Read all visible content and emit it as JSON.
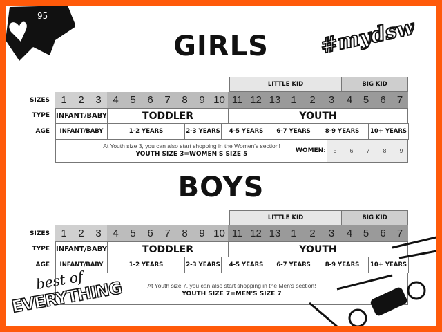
{
  "badge": {
    "icon": "heart-icon",
    "count": "95"
  },
  "hashtag": "#mydsw",
  "logo_text": "best of EVERYTHING",
  "row_labels": {
    "sizes": "SIZES",
    "type": "TYPE",
    "age": "AGE"
  },
  "groups": {
    "little_kid": "LITTLE KID",
    "big_kid": "BIG KID"
  },
  "sizes": [
    "1",
    "2",
    "3",
    "4",
    "5",
    "6",
    "7",
    "8",
    "9",
    "10",
    "11",
    "12",
    "13",
    "1",
    "2",
    "3",
    "4",
    "5",
    "6",
    "7"
  ],
  "types": {
    "infant": "INFANT/BABY",
    "toddler": "TODDLER",
    "youth": "YOUTH"
  },
  "ages": [
    "INFANT/BABY",
    "1-2 YEARS",
    "2-3 YEARS",
    "4-5 YEARS",
    "6-7 YEARS",
    "8-9 YEARS",
    "10+ YEARS"
  ],
  "girls": {
    "title": "GIRLS",
    "note": "At Youth size 3, you can also start shopping in the Women's section!",
    "note_bold": "YOUTH SIZE 3=WOMEN'S SIZE 5",
    "women_label": "WOMEN:",
    "women_sizes": [
      "5",
      "6",
      "7",
      "8",
      "9"
    ]
  },
  "boys": {
    "title": "BOYS",
    "note": "At Youth size 7, you can also start shopping in the Men's section!",
    "note_bold": "YOUTH SIZE 7=MEN'S SIZE 7"
  },
  "colors": {
    "border": "#ff5a0a",
    "infant_sizes": "#d0d0d0",
    "toddler_sizes": "#bcbcbc",
    "youth_sizes": "#9a9a9a",
    "little_kid": "#e6e6e6",
    "big_kid": "#cecece",
    "women_cells": "#ececec"
  }
}
